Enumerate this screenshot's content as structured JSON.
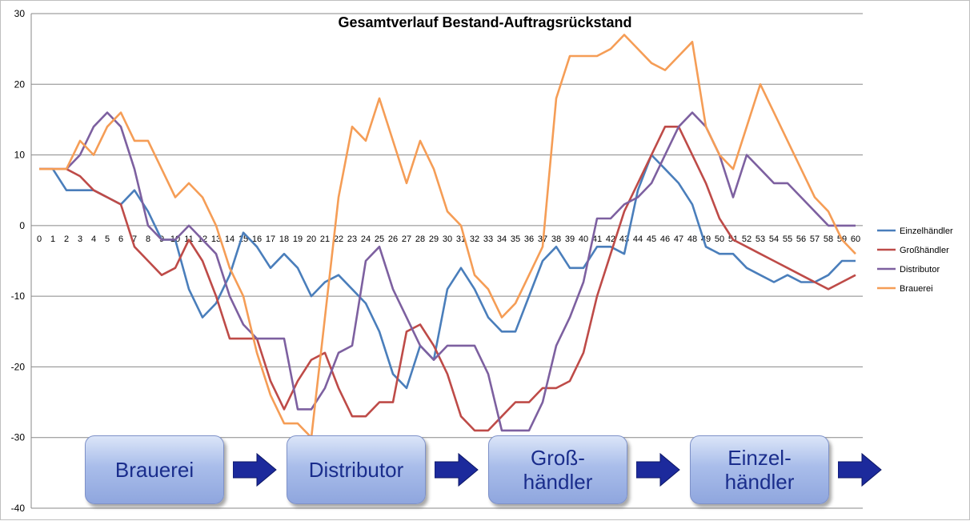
{
  "chart_data": {
    "type": "line",
    "title": "Gesamtverlauf Bestand-Auftragsrückstand",
    "xlabel": "",
    "ylabel": "",
    "x": [
      0,
      1,
      2,
      3,
      4,
      5,
      6,
      7,
      8,
      9,
      10,
      11,
      12,
      13,
      14,
      15,
      16,
      17,
      18,
      19,
      20,
      21,
      22,
      23,
      24,
      25,
      26,
      27,
      28,
      29,
      30,
      31,
      32,
      33,
      34,
      35,
      36,
      37,
      38,
      39,
      40,
      41,
      42,
      43,
      44,
      45,
      46,
      47,
      48,
      49,
      50,
      51,
      52,
      53,
      54,
      55,
      56,
      57,
      58,
      59,
      60
    ],
    "ylim": [
      -40,
      30
    ],
    "yticks": [
      -40,
      -30,
      -20,
      -10,
      0,
      10,
      20,
      30
    ],
    "grid": true,
    "legend_position": "right",
    "series": [
      {
        "name": "Einzelhändler",
        "color": "#4a7ebb",
        "values": [
          8,
          8,
          5,
          5,
          5,
          4,
          3,
          5,
          2,
          -2,
          -2,
          -9,
          -13,
          -11,
          -7,
          -1,
          -3,
          -6,
          -4,
          -6,
          -10,
          -8,
          -7,
          -9,
          -11,
          -15,
          -21,
          -23,
          -17,
          -19,
          -9,
          -6,
          -9,
          -13,
          -15,
          -15,
          -10,
          -5,
          -3,
          -6,
          -6,
          -3,
          -3,
          -4,
          5,
          10,
          8,
          6,
          3,
          -3,
          -4,
          -4,
          -6,
          -7,
          -8,
          -7,
          -8,
          -8,
          -7,
          -5,
          -5
        ]
      },
      {
        "name": "Großhändler",
        "color": "#be4b48",
        "values": [
          8,
          8,
          8,
          7,
          5,
          4,
          3,
          -3,
          -5,
          -7,
          -6,
          -2,
          -5,
          -10,
          -16,
          -16,
          -16,
          -22,
          -26,
          -22,
          -19,
          -18,
          -23,
          -27,
          -27,
          -25,
          -25,
          -15,
          -14,
          -17,
          -21,
          -27,
          -29,
          -29,
          -27,
          -25,
          -25,
          -23,
          -23,
          -22,
          -18,
          -10,
          -4,
          2,
          6,
          10,
          14,
          14,
          10,
          6,
          1,
          -2,
          -3,
          -4,
          -5,
          -6,
          -7,
          -8,
          -9,
          -8,
          -7
        ]
      },
      {
        "name": "Distributor",
        "color": "#7d60a0",
        "values": [
          8,
          8,
          8,
          10,
          14,
          16,
          14,
          8,
          0,
          -2,
          -2,
          0,
          -2,
          -4,
          -10,
          -14,
          -16,
          -16,
          -16,
          -26,
          -26,
          -23,
          -18,
          -17,
          -5,
          -3,
          -9,
          -13,
          -17,
          -19,
          -17,
          -17,
          -17,
          -21,
          -29,
          -29,
          -29,
          -25,
          -17,
          -13,
          -8,
          1,
          1,
          3,
          4,
          6,
          10,
          14,
          16,
          14,
          10,
          4,
          10,
          8,
          6,
          6,
          4,
          2,
          0,
          0,
          0
        ]
      },
      {
        "name": "Brauerei",
        "color": "#f59d56",
        "values": [
          8,
          8,
          8,
          12,
          10,
          14,
          16,
          12,
          12,
          8,
          4,
          6,
          4,
          0,
          -6,
          -10,
          -18,
          -24,
          -28,
          -28,
          -30,
          -13,
          4,
          14,
          12,
          18,
          12,
          6,
          12,
          8,
          2,
          0,
          -7,
          -9,
          -13,
          -11,
          -7,
          -3,
          18,
          24,
          24,
          24,
          25,
          27,
          25,
          23,
          22,
          24,
          26,
          14,
          10,
          8,
          14,
          20,
          16,
          12,
          8,
          4,
          2,
          -2,
          -4
        ]
      }
    ]
  },
  "flow": {
    "boxes": [
      "Brauerei",
      "Distributor",
      "Groß-\nhändler",
      "Einzel-\nhändler"
    ],
    "arrow_color": "#1c2a9c"
  }
}
